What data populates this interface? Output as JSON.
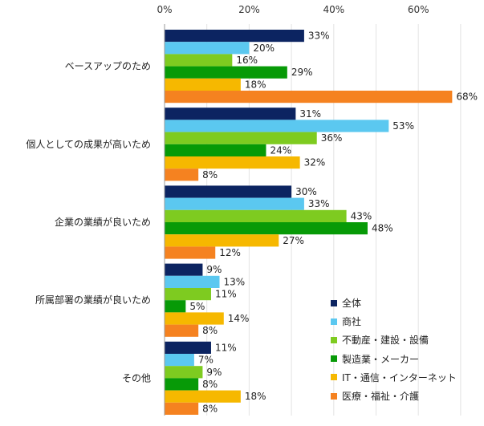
{
  "chart_data": {
    "type": "bar",
    "orientation": "horizontal",
    "title": "",
    "xlabel": "",
    "ylabel": "",
    "xlim": [
      0,
      75
    ],
    "x_ticks": [
      "0%",
      "20%",
      "40%",
      "60%"
    ],
    "x_tick_values": [
      0,
      20,
      40,
      60
    ],
    "grid": true,
    "legend_position": "bottom-right",
    "categories": [
      "ベースアップのため",
      "個人としての成果が高いため",
      "企業の業績が良いため",
      "所属部署の業績が良いため",
      "その他"
    ],
    "series": [
      {
        "name": "全体",
        "color": "#0c2461",
        "values": [
          33,
          31,
          30,
          9,
          11
        ],
        "labels": [
          "33%",
          "31%",
          "30%",
          "9%",
          "11%"
        ]
      },
      {
        "name": "商社",
        "color": "#5bc8f0",
        "values": [
          20,
          53,
          33,
          13,
          7
        ],
        "labels": [
          "20%",
          "53%",
          "33%",
          "13%",
          "7%"
        ]
      },
      {
        "name": "不動産・建設・設備",
        "color": "#7ecb20",
        "values": [
          16,
          36,
          43,
          11,
          9
        ],
        "labels": [
          "16%",
          "36%",
          "43%",
          "11%",
          "9%"
        ]
      },
      {
        "name": "製造業・メーカー",
        "color": "#079a07",
        "values": [
          29,
          24,
          48,
          5,
          8
        ],
        "labels": [
          "29%",
          "24%",
          "48%",
          "5%",
          "8%"
        ]
      },
      {
        "name": "IT・通信・インターネット",
        "color": "#f6b800",
        "values": [
          18,
          32,
          27,
          14,
          18
        ],
        "labels": [
          "18%",
          "32%",
          "27%",
          "14%",
          "18%"
        ]
      },
      {
        "name": "医療・福祉・介護",
        "color": "#f58220",
        "values": [
          68,
          8,
          12,
          8,
          8
        ],
        "labels": [
          "68%",
          "8%",
          "12%",
          "8%",
          "8%"
        ]
      }
    ]
  }
}
